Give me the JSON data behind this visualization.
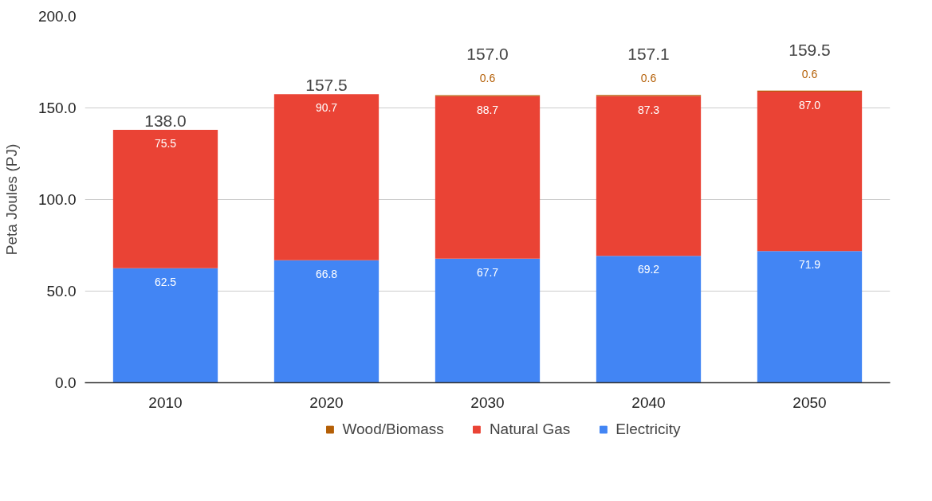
{
  "chart_data": {
    "type": "bar",
    "stacked": true,
    "ylabel": "Peta Joules (PJ)",
    "categories": [
      "2010",
      "2020",
      "2030",
      "2040",
      "2050"
    ],
    "series": [
      {
        "name": "Electricity",
        "color": "#4285f4",
        "values": [
          62.5,
          66.8,
          67.7,
          69.2,
          71.9
        ],
        "value_labels": [
          "62.5",
          "66.8",
          "67.7",
          "69.2",
          "71.9"
        ]
      },
      {
        "name": "Natural Gas",
        "color": "#ea4335",
        "values": [
          75.5,
          90.7,
          88.7,
          87.3,
          87.0
        ],
        "value_labels": [
          "75.5",
          "90.7",
          "88.7",
          "87.3",
          "87.0"
        ]
      },
      {
        "name": "Wood/Biomass",
        "color": "#b45f06",
        "values": [
          null,
          null,
          0.6,
          0.6,
          0.6
        ],
        "value_labels": [
          null,
          null,
          "0.6",
          "0.6",
          "0.6"
        ]
      }
    ],
    "totals": [
      "138.0",
      "157.5",
      "157.0",
      "157.1",
      "159.5"
    ],
    "ylim": [
      0,
      200
    ],
    "yticks": [
      {
        "value": 0,
        "label": "0.0"
      },
      {
        "value": 50,
        "label": "50.0"
      },
      {
        "value": 100,
        "label": "100.0"
      },
      {
        "value": 150,
        "label": "150.0"
      },
      {
        "value": 200,
        "label": "200.0"
      }
    ],
    "grid": "y",
    "legend": "bottom"
  }
}
